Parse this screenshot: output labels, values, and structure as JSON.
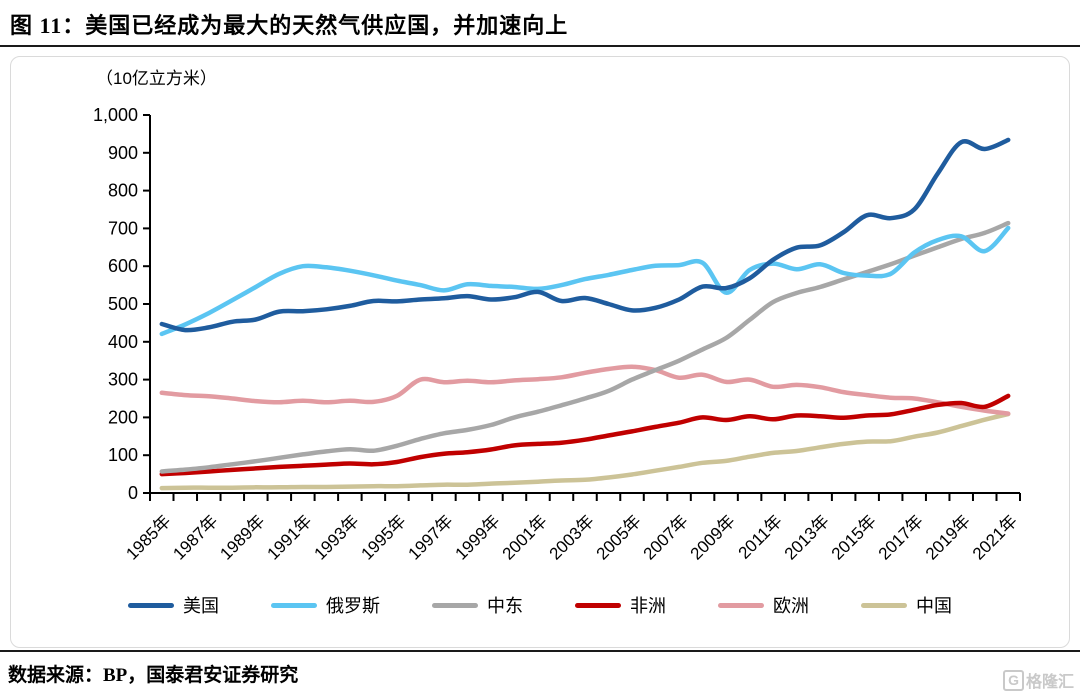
{
  "figure": {
    "title": "图 11：美国已经成为最大的天然气供应国，并加速向上",
    "source": "数据来源：BP，国泰君安证券研究",
    "logo_letter": "G",
    "logo_text": "格隆汇"
  },
  "chart_data": {
    "type": "line",
    "title": "美国已经成为最大的天然气供应国，并加速向上",
    "unit_label": "（10亿立方米）",
    "ylabel": "10亿立方米",
    "ylim": [
      0,
      1000
    ],
    "grid": false,
    "legend_position": "bottom",
    "y_tick_labels": [
      "0",
      "100",
      "200",
      "300",
      "400",
      "500",
      "600",
      "700",
      "800",
      "900",
      "1,000"
    ],
    "y_tick_values": [
      0,
      100,
      200,
      300,
      400,
      500,
      600,
      700,
      800,
      900,
      1000
    ],
    "x": [
      1985,
      1986,
      1987,
      1988,
      1989,
      1990,
      1991,
      1992,
      1993,
      1994,
      1995,
      1996,
      1997,
      1998,
      1999,
      2000,
      2001,
      2002,
      2003,
      2004,
      2005,
      2006,
      2007,
      2008,
      2009,
      2010,
      2011,
      2012,
      2013,
      2014,
      2015,
      2016,
      2017,
      2018,
      2019,
      2020,
      2021
    ],
    "x_tick_labels": [
      "1985年",
      "1987年",
      "1989年",
      "1991年",
      "1993年",
      "1995年",
      "1997年",
      "1999年",
      "2001年",
      "2003年",
      "2005年",
      "2007年",
      "2009年",
      "2011年",
      "2013年",
      "2015年",
      "2017年",
      "2019年",
      "2021年"
    ],
    "series": [
      {
        "key": "usa",
        "name": "美国",
        "color": "#1f5c9e",
        "values": [
          447,
          431,
          438,
          453,
          459,
          480,
          481,
          486,
          495,
          508,
          507,
          512,
          515,
          521,
          512,
          518,
          532,
          508,
          516,
          500,
          483,
          490,
          512,
          546,
          542,
          568,
          617,
          649,
          655,
          690,
          735,
          727,
          750,
          845,
          928,
          910,
          934
        ]
      },
      {
        "key": "russia",
        "name": "俄罗斯",
        "color": "#5bc5f2",
        "values": [
          421,
          446,
          476,
          510,
          545,
          580,
          600,
          597,
          588,
          576,
          562,
          550,
          536,
          552,
          548,
          545,
          540,
          550,
          566,
          577,
          590,
          601,
          603,
          609,
          530,
          590,
          607,
          592,
          605,
          582,
          575,
          580,
          636,
          669,
          679,
          640,
          701
        ]
      },
      {
        "key": "middle-east",
        "name": "中东",
        "color": "#a7a7a7",
        "values": [
          57,
          62,
          68,
          76,
          84,
          93,
          102,
          110,
          116,
          112,
          125,
          143,
          158,
          167,
          180,
          200,
          215,
          232,
          250,
          270,
          300,
          325,
          350,
          380,
          410,
          458,
          505,
          529,
          545,
          565,
          585,
          605,
          628,
          650,
          672,
          688,
          714
        ]
      },
      {
        "key": "africa",
        "name": "非洲",
        "color": "#c00000",
        "values": [
          50,
          53,
          57,
          61,
          65,
          69,
          72,
          75,
          78,
          76,
          82,
          95,
          104,
          108,
          115,
          126,
          130,
          133,
          141,
          152,
          163,
          175,
          186,
          200,
          193,
          203,
          195,
          205,
          203,
          199,
          205,
          208,
          220,
          233,
          238,
          228,
          257
        ]
      },
      {
        "key": "europe",
        "name": "欧洲",
        "color": "#e29ba1",
        "values": [
          265,
          259,
          256,
          250,
          243,
          240,
          244,
          240,
          244,
          241,
          257,
          300,
          293,
          297,
          293,
          298,
          301,
          306,
          318,
          328,
          334,
          325,
          305,
          313,
          294,
          300,
          281,
          286,
          280,
          267,
          259,
          252,
          250,
          240,
          228,
          218,
          210
        ]
      },
      {
        "key": "china",
        "name": "中国",
        "color": "#ccc397",
        "values": [
          13,
          14,
          14,
          14,
          15,
          15,
          16,
          16,
          17,
          18,
          18,
          20,
          22,
          22,
          25,
          27,
          30,
          33,
          35,
          41,
          49,
          59,
          69,
          80,
          85,
          96,
          106,
          111,
          121,
          130,
          136,
          137,
          149,
          160,
          177,
          194,
          209
        ]
      }
    ]
  }
}
